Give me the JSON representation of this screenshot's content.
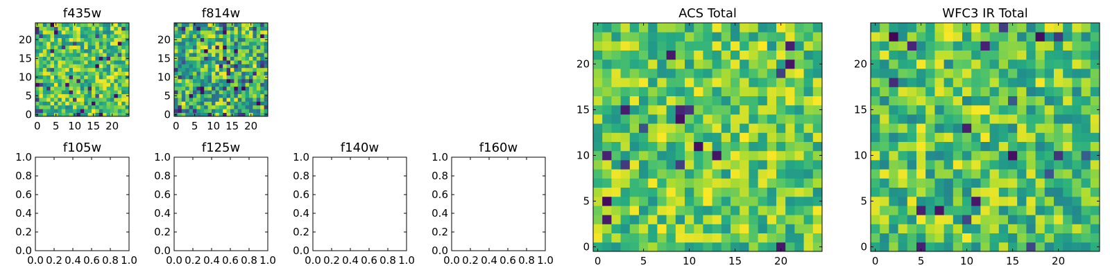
{
  "chart_data": [
    {
      "title": "f435w",
      "type": "heatmap",
      "kind": "image",
      "xlim": [
        -0.5,
        24.5
      ],
      "ylim": [
        -0.5,
        24.5
      ],
      "xticks": [
        0,
        5,
        10,
        15,
        20
      ],
      "yticks": [
        0,
        5,
        10,
        15,
        20
      ],
      "colormap": "viridis",
      "grid_size": 25,
      "seed": 11,
      "lo": 0.45,
      "hi": 1.0,
      "dark_prob": 0.05
    },
    {
      "title": "f814w",
      "type": "heatmap",
      "kind": "image",
      "xlim": [
        -0.5,
        24.5
      ],
      "ylim": [
        -0.5,
        24.5
      ],
      "xticks": [
        0,
        5,
        10,
        15,
        20
      ],
      "yticks": [
        0,
        5,
        10,
        15,
        20
      ],
      "colormap": "viridis",
      "grid_size": 25,
      "seed": 23,
      "lo": 0.35,
      "hi": 1.0,
      "dark_prob": 0.08
    },
    {
      "title": "f105w",
      "type": "scatter",
      "kind": "empty",
      "xlim": [
        0.0,
        1.0
      ],
      "ylim": [
        0.0,
        1.0
      ],
      "xticks": [
        0.0,
        0.2,
        0.4,
        0.6,
        0.8,
        1.0
      ],
      "yticks": [
        0.0,
        0.2,
        0.4,
        0.6,
        0.8,
        1.0
      ]
    },
    {
      "title": "f125w",
      "type": "scatter",
      "kind": "empty",
      "xlim": [
        0.0,
        1.0
      ],
      "ylim": [
        0.0,
        1.0
      ],
      "xticks": [
        0.0,
        0.2,
        0.4,
        0.6,
        0.8,
        1.0
      ],
      "yticks": [
        0.0,
        0.2,
        0.4,
        0.6,
        0.8,
        1.0
      ]
    },
    {
      "title": "f140w",
      "type": "scatter",
      "kind": "empty",
      "xlim": [
        0.0,
        1.0
      ],
      "ylim": [
        0.0,
        1.0
      ],
      "xticks": [
        0.0,
        0.2,
        0.4,
        0.6,
        0.8,
        1.0
      ],
      "yticks": [
        0.0,
        0.2,
        0.4,
        0.6,
        0.8,
        1.0
      ]
    },
    {
      "title": "f160w",
      "type": "scatter",
      "kind": "empty",
      "xlim": [
        0.0,
        1.0
      ],
      "ylim": [
        0.0,
        1.0
      ],
      "xticks": [
        0.0,
        0.2,
        0.4,
        0.6,
        0.8,
        1.0
      ],
      "yticks": [
        0.0,
        0.2,
        0.4,
        0.6,
        0.8,
        1.0
      ]
    },
    {
      "title": "ACS Total",
      "type": "heatmap",
      "kind": "image",
      "xlim": [
        -0.5,
        24.5
      ],
      "ylim": [
        -0.5,
        24.5
      ],
      "xticks": [
        0,
        5,
        10,
        15,
        20
      ],
      "yticks": [
        0,
        5,
        10,
        15,
        20
      ],
      "colormap": "viridis",
      "grid_size": 25,
      "seed": 37,
      "lo": 0.5,
      "hi": 1.0,
      "dark_prob": 0.03
    },
    {
      "title": "WFC3 IR Total",
      "type": "heatmap",
      "kind": "image",
      "xlim": [
        -0.5,
        24.5
      ],
      "ylim": [
        -0.5,
        24.5
      ],
      "xticks": [
        0,
        5,
        10,
        15,
        20
      ],
      "yticks": [
        0,
        5,
        10,
        15,
        20
      ],
      "colormap": "viridis",
      "grid_size": 25,
      "seed": 53,
      "lo": 0.45,
      "hi": 1.0,
      "dark_prob": 0.04
    }
  ]
}
